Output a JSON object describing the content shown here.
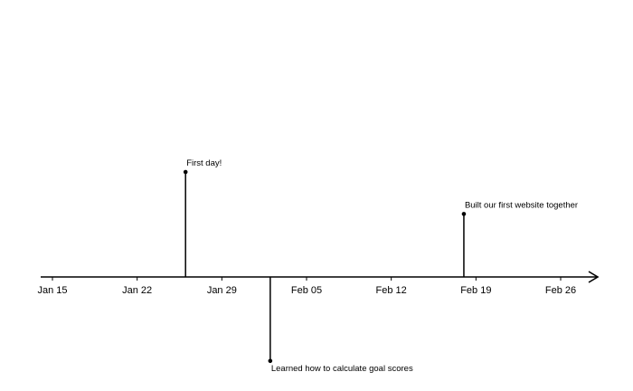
{
  "chart_data": {
    "type": "timeline",
    "title": "",
    "xlabel": "",
    "ylabel": "",
    "x_axis": {
      "type": "date",
      "range": [
        "2024-01-13",
        "2024-03-01"
      ],
      "ticks": [
        {
          "date": "2024-01-15",
          "label": "Jan 15"
        },
        {
          "date": "2024-01-22",
          "label": "Jan 22"
        },
        {
          "date": "2024-01-29",
          "label": "Jan 29"
        },
        {
          "date": "2024-02-05",
          "label": "Feb 05"
        },
        {
          "date": "2024-02-12",
          "label": "Feb 12"
        },
        {
          "date": "2024-02-19",
          "label": "Feb 19"
        },
        {
          "date": "2024-02-26",
          "label": "Feb 26"
        }
      ]
    },
    "y_axis": {
      "range": [
        -1.0,
        1.0
      ],
      "visible": false
    },
    "grid": false,
    "events": [
      {
        "date": "2024-01-26",
        "level": 1.0,
        "label": "First day!"
      },
      {
        "date": "2024-02-02",
        "level": -0.8,
        "label": "Learned how to calculate goal scores"
      },
      {
        "date": "2024-02-18",
        "level": 0.6,
        "label": "Built our first website together"
      }
    ],
    "colors": {
      "axis": "#000000",
      "stem": "#000000",
      "marker": "#000000",
      "text": "#000000"
    }
  }
}
